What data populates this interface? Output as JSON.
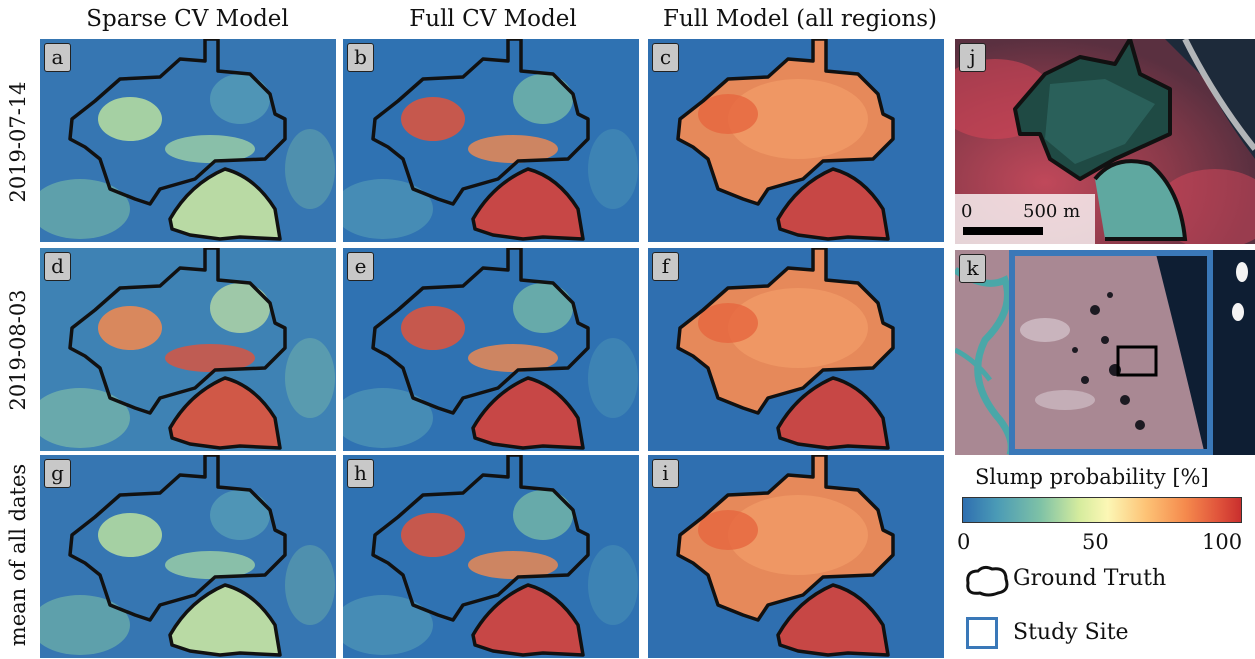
{
  "columns": [
    "Sparse CV Model",
    "Full CV Model",
    "Full Model (all regions)"
  ],
  "rows": [
    "2019-07-14",
    "2019-08-03",
    "mean of all dates"
  ],
  "panel_labels": [
    "a",
    "b",
    "c",
    "d",
    "e",
    "f",
    "g",
    "h",
    "i"
  ],
  "side_panels": {
    "top": "j",
    "mid": "k"
  },
  "scalebar": {
    "start": "0",
    "end": "500 m"
  },
  "legend": {
    "title": "Slump probability [%]",
    "ticks": [
      "0",
      "50",
      "100"
    ],
    "ground_truth": "Ground Truth",
    "study_site": "Study Site"
  },
  "colors": {
    "low": "#2f6fb0",
    "mid": "#fcf7b5",
    "high": "#c92f2e",
    "outline": "#111111",
    "study_site": "#3a78b8"
  },
  "probability_levels": {
    "a": "low",
    "b": "medium",
    "c": "high",
    "d": "low-medium",
    "e": "medium",
    "f": "high",
    "g": "low",
    "h": "medium",
    "i": "high"
  }
}
